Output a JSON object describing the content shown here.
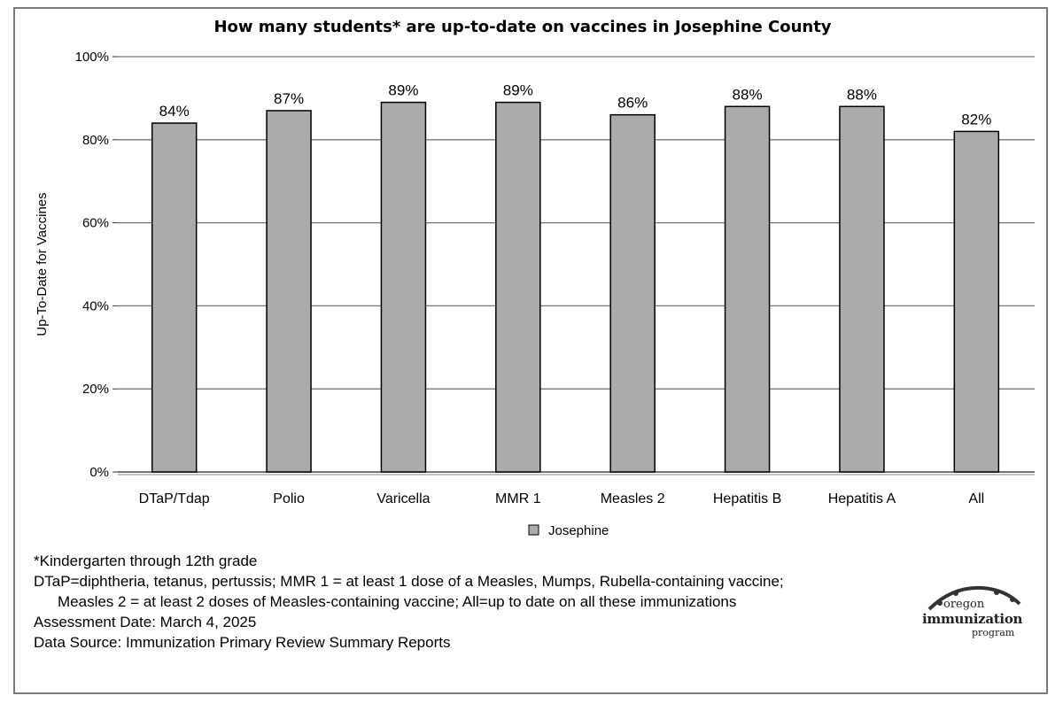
{
  "chart_data": {
    "type": "bar",
    "title": "How many students* are up-to-date on vaccines in Josephine County",
    "ylabel": "Up-To-Date for Vaccines",
    "xlabel": "",
    "categories": [
      "DTaP/Tdap",
      "Polio",
      "Varicella",
      "MMR 1",
      "Measles 2",
      "Hepatitis B",
      "Hepatitis A",
      "All"
    ],
    "series": [
      {
        "name": "Josephine",
        "values": [
          84,
          87,
          89,
          89,
          86,
          88,
          88,
          82
        ],
        "data_labels": [
          "84%",
          "87%",
          "89%",
          "89%",
          "86%",
          "88%",
          "88%",
          "82%"
        ],
        "color": "#ababab"
      }
    ],
    "ylim": [
      0,
      100
    ],
    "yticks": [
      0,
      20,
      40,
      60,
      80,
      100
    ],
    "ytick_labels": [
      "0%",
      "20%",
      "40%",
      "60%",
      "80%",
      "100%"
    ],
    "grid": true,
    "legend_position": "bottom"
  },
  "notes": {
    "line1": "*Kindergarten through 12th grade",
    "line2": "DTaP=diphtheria, tetanus, pertussis; MMR 1 = at least 1 dose of a Measles, Mumps, Rubella-containing vaccine;",
    "line3": "Measles 2 = at least 2 doses of Measles-containing vaccine; All=up to date on all these immunizations",
    "line4": "Assessment Date: March 4, 2025",
    "line5": "Data Source: Immunization Primary Review Summary Reports"
  },
  "logo": {
    "line1": "oregon",
    "line2": "immunization",
    "line3": "program"
  }
}
